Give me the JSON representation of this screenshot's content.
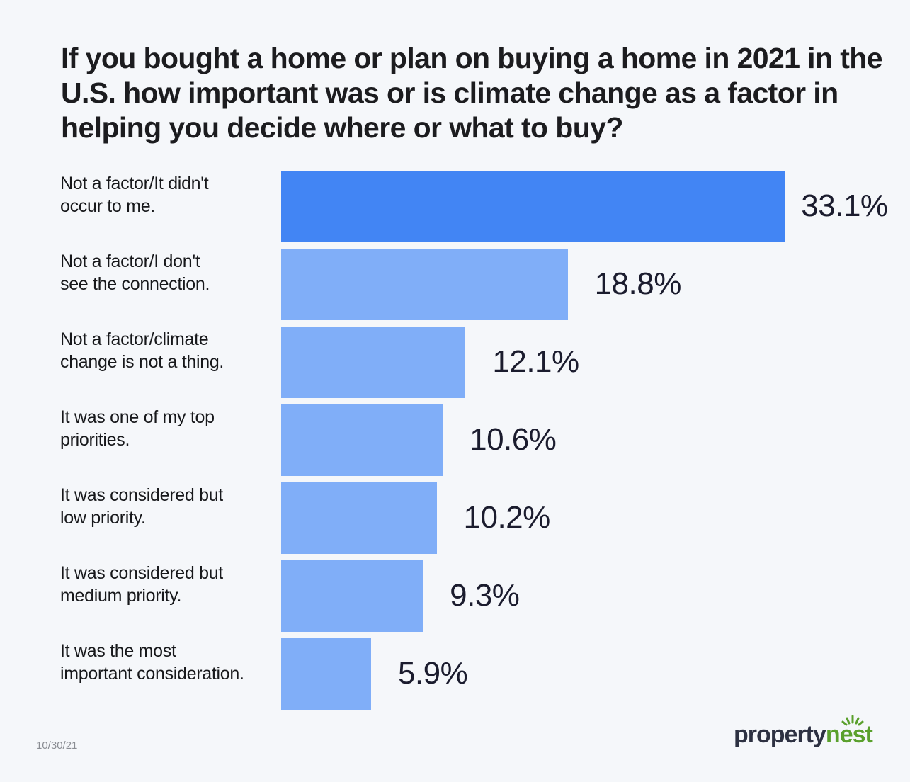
{
  "title": "If you bought a home or plan on buying a home in 2021 in the U.S. how important was or is climate change as a factor in helping you decide where or what to buy?",
  "colors": {
    "background": "#f5f7fa",
    "highlight_bar": "#4285f4",
    "bar": "#80aef8",
    "value_text": "#1b1c2e",
    "logo_dark": "#2d3142",
    "logo_green": "#5aa02c"
  },
  "rows": [
    {
      "label": "Not a factor/It didn't\noccur to me.",
      "value": "33.1%"
    },
    {
      "label": "Not a factor/I don't\nsee the connection.",
      "value": "18.8%"
    },
    {
      "label": "Not a factor/climate\nchange is not a thing.",
      "value": "12.1%"
    },
    {
      "label": "It was one of my top\npriorities.",
      "value": "10.6%"
    },
    {
      "label": "It was considered but\nlow priority.",
      "value": "10.2%"
    },
    {
      "label": "It was considered but\nmedium priority.",
      "value": "9.3%"
    },
    {
      "label": "It was the most\nimportant consideration.",
      "value": "5.9%"
    }
  ],
  "footer": {
    "date": "10/30/21",
    "logo_part1": "property",
    "logo_part2": "nest"
  },
  "chart_data": {
    "type": "bar",
    "orientation": "horizontal",
    "title": "If you bought a home or plan on buying a home in 2021 in the U.S. how important was or is climate change as a factor in helping you decide where or what to buy?",
    "categories": [
      "Not a factor/It didn't occur to me.",
      "Not a factor/I don't see the connection.",
      "Not a factor/climate change is not a thing.",
      "It was one of my top priorities.",
      "It was considered but low priority.",
      "It was considered but medium priority.",
      "It was the most important consideration."
    ],
    "values": [
      33.1,
      18.8,
      12.1,
      10.6,
      10.2,
      9.3,
      5.9
    ],
    "unit": "%",
    "xlabel": "",
    "ylabel": "",
    "data_labels": true,
    "grid": false,
    "legend": "none",
    "highlighted_index": 0
  }
}
